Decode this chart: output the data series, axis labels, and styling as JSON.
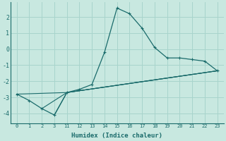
{
  "xlabel": "Humidex (Indice chaleur)",
  "ylabel": "",
  "bg_color": "#c8e8e0",
  "grid_color": "#a8d4cc",
  "line_color": "#1a6b6b",
  "xlim": [
    -0.5,
    16.5
  ],
  "ylim": [
    -4.6,
    2.9
  ],
  "yticks": [
    -4,
    -3,
    -2,
    -1,
    0,
    1,
    2
  ],
  "xtick_positions": [
    0,
    1,
    2,
    3,
    4,
    5,
    6,
    7,
    8,
    9,
    10,
    11,
    12,
    13,
    14,
    15,
    16
  ],
  "xtick_labels": [
    "0",
    "1",
    "2",
    "3",
    "11",
    "12",
    "13",
    "14",
    "15",
    "16",
    "17",
    "18",
    "19",
    "20",
    "21",
    "22",
    "23"
  ],
  "series1_x": [
    0,
    1,
    2,
    3,
    4,
    5,
    6,
    7,
    8,
    9,
    10,
    11,
    12,
    13,
    14,
    15,
    16
  ],
  "series1_y": [
    -2.8,
    -3.2,
    -3.7,
    -4.1,
    -2.7,
    -2.5,
    -2.2,
    -0.2,
    2.55,
    2.2,
    1.3,
    0.1,
    -0.55,
    -0.55,
    -0.65,
    -0.75,
    -1.35
  ],
  "series2_x": [
    0,
    4,
    16
  ],
  "series2_y": [
    -2.8,
    -2.7,
    -1.35
  ],
  "series3_x": [
    2,
    4,
    16
  ],
  "series3_y": [
    -3.7,
    -2.7,
    -1.35
  ],
  "series4_x": [
    3,
    4,
    16
  ],
  "series4_y": [
    -4.1,
    -2.7,
    -1.35
  ]
}
